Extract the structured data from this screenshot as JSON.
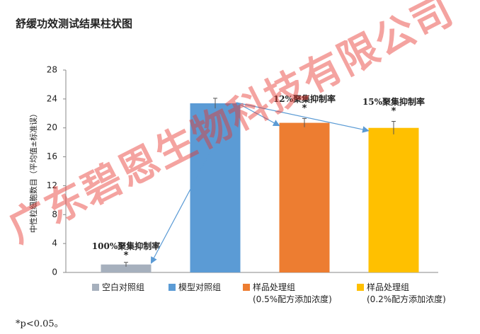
{
  "chart_data": {
    "type": "bar",
    "title": "舒缓功效测试结果柱状图",
    "y_label": "中性粒细胞数目（平均值±标准误）",
    "categories": [
      "空白对照组",
      "模型对照组",
      "样品处理组\n(0.5%配方添加浓度)",
      "样品处理组\n(0.2%配方添加浓度)"
    ],
    "values": [
      1.1,
      23.4,
      20.7,
      20.0
    ],
    "errors": [
      0.3,
      0.7,
      0.6,
      0.9
    ],
    "colors": [
      "#a6b0bd",
      "#5b9bd5",
      "#ed7d31",
      "#ffc000"
    ],
    "ylim": [
      0,
      28
    ],
    "yticks": [
      0,
      4,
      8,
      12,
      16,
      20,
      24,
      28
    ],
    "annotations": [
      {
        "text": "100%聚集抑制率",
        "target": "空白对照组"
      },
      {
        "text": "12%聚集抑制率",
        "target": "样品处理组\n(0.5%配方添加浓度)"
      },
      {
        "text": "15%聚集抑制率",
        "target": "样品处理组\n(0.2%配方添加浓度)"
      }
    ],
    "significance_mark": "*",
    "footnote": "*p<0.05。",
    "watermark": "广东碧恩生物科技有限公司"
  }
}
